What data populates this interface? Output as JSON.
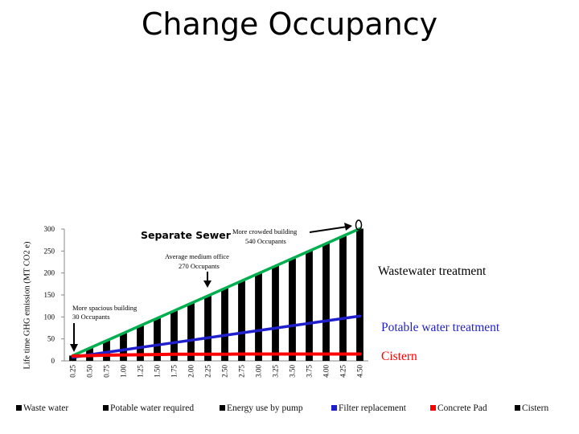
{
  "slide": {
    "title": "Change Occupancy"
  },
  "chart_data": {
    "type": "bar",
    "title": "Separate Sewer",
    "ylabel": "Life time GHG emission (MT CO2 e)",
    "xlabel": "",
    "ylim": [
      0,
      300
    ],
    "y_ticks": [
      "0",
      "50",
      "100",
      "150",
      "200",
      "250",
      "300"
    ],
    "categories": [
      "0.25",
      "0.50",
      "0.75",
      "1.00",
      "1.25",
      "1.50",
      "1.75",
      "2.00",
      "2.25",
      "2.50",
      "2.75",
      "3.00",
      "3.25",
      "3.50",
      "3.75",
      "4.00",
      "4.25",
      "4.50"
    ],
    "bar_color": "#000000",
    "series": [
      {
        "name": "Wastewater treatment",
        "color": "#00b050",
        "values": [
          12,
          29,
          46,
          63,
          80,
          97,
          114,
          131,
          148,
          165,
          182,
          199,
          216,
          233,
          250,
          267,
          284,
          301
        ]
      },
      {
        "name": "Potable water treatment",
        "color": "#1f1fcc",
        "values": [
          8,
          14,
          19.5,
          25,
          30.5,
          36,
          41.5,
          47,
          52.5,
          58,
          63.5,
          69,
          74.5,
          80,
          85.5,
          91,
          96.5,
          102
        ]
      },
      {
        "name": "Cistern",
        "color": "#ff0000",
        "values": [
          11,
          12,
          13,
          13.5,
          14,
          14.5,
          15,
          15,
          15,
          15,
          15.5,
          15.5,
          15.5,
          15.5,
          15.5,
          15.5,
          15.5,
          15.5
        ]
      }
    ],
    "annotations": [
      {
        "text_lines": [
          "More crowded building",
          "540 Occupants"
        ],
        "category": "4.50"
      },
      {
        "text_lines": [
          "Average medium office",
          "270 Occupants"
        ],
        "category": "2.25"
      },
      {
        "text_lines": [
          "More spacious building",
          "30 Occupants"
        ],
        "category": "0.25"
      }
    ],
    "legend": {
      "position": "bottom",
      "entries": [
        {
          "label": "Waste water",
          "color": "#000000"
        },
        {
          "label": "Potable water required",
          "color": "#000000"
        },
        {
          "label": "Energy use by pump",
          "color": "#000000"
        },
        {
          "label": "Filter replacement",
          "color": "#1f1fcc"
        },
        {
          "label": "Concrete Pad",
          "color": "#ff0000"
        },
        {
          "label": "Cistern",
          "color": "#000000"
        }
      ]
    },
    "grid": false
  }
}
